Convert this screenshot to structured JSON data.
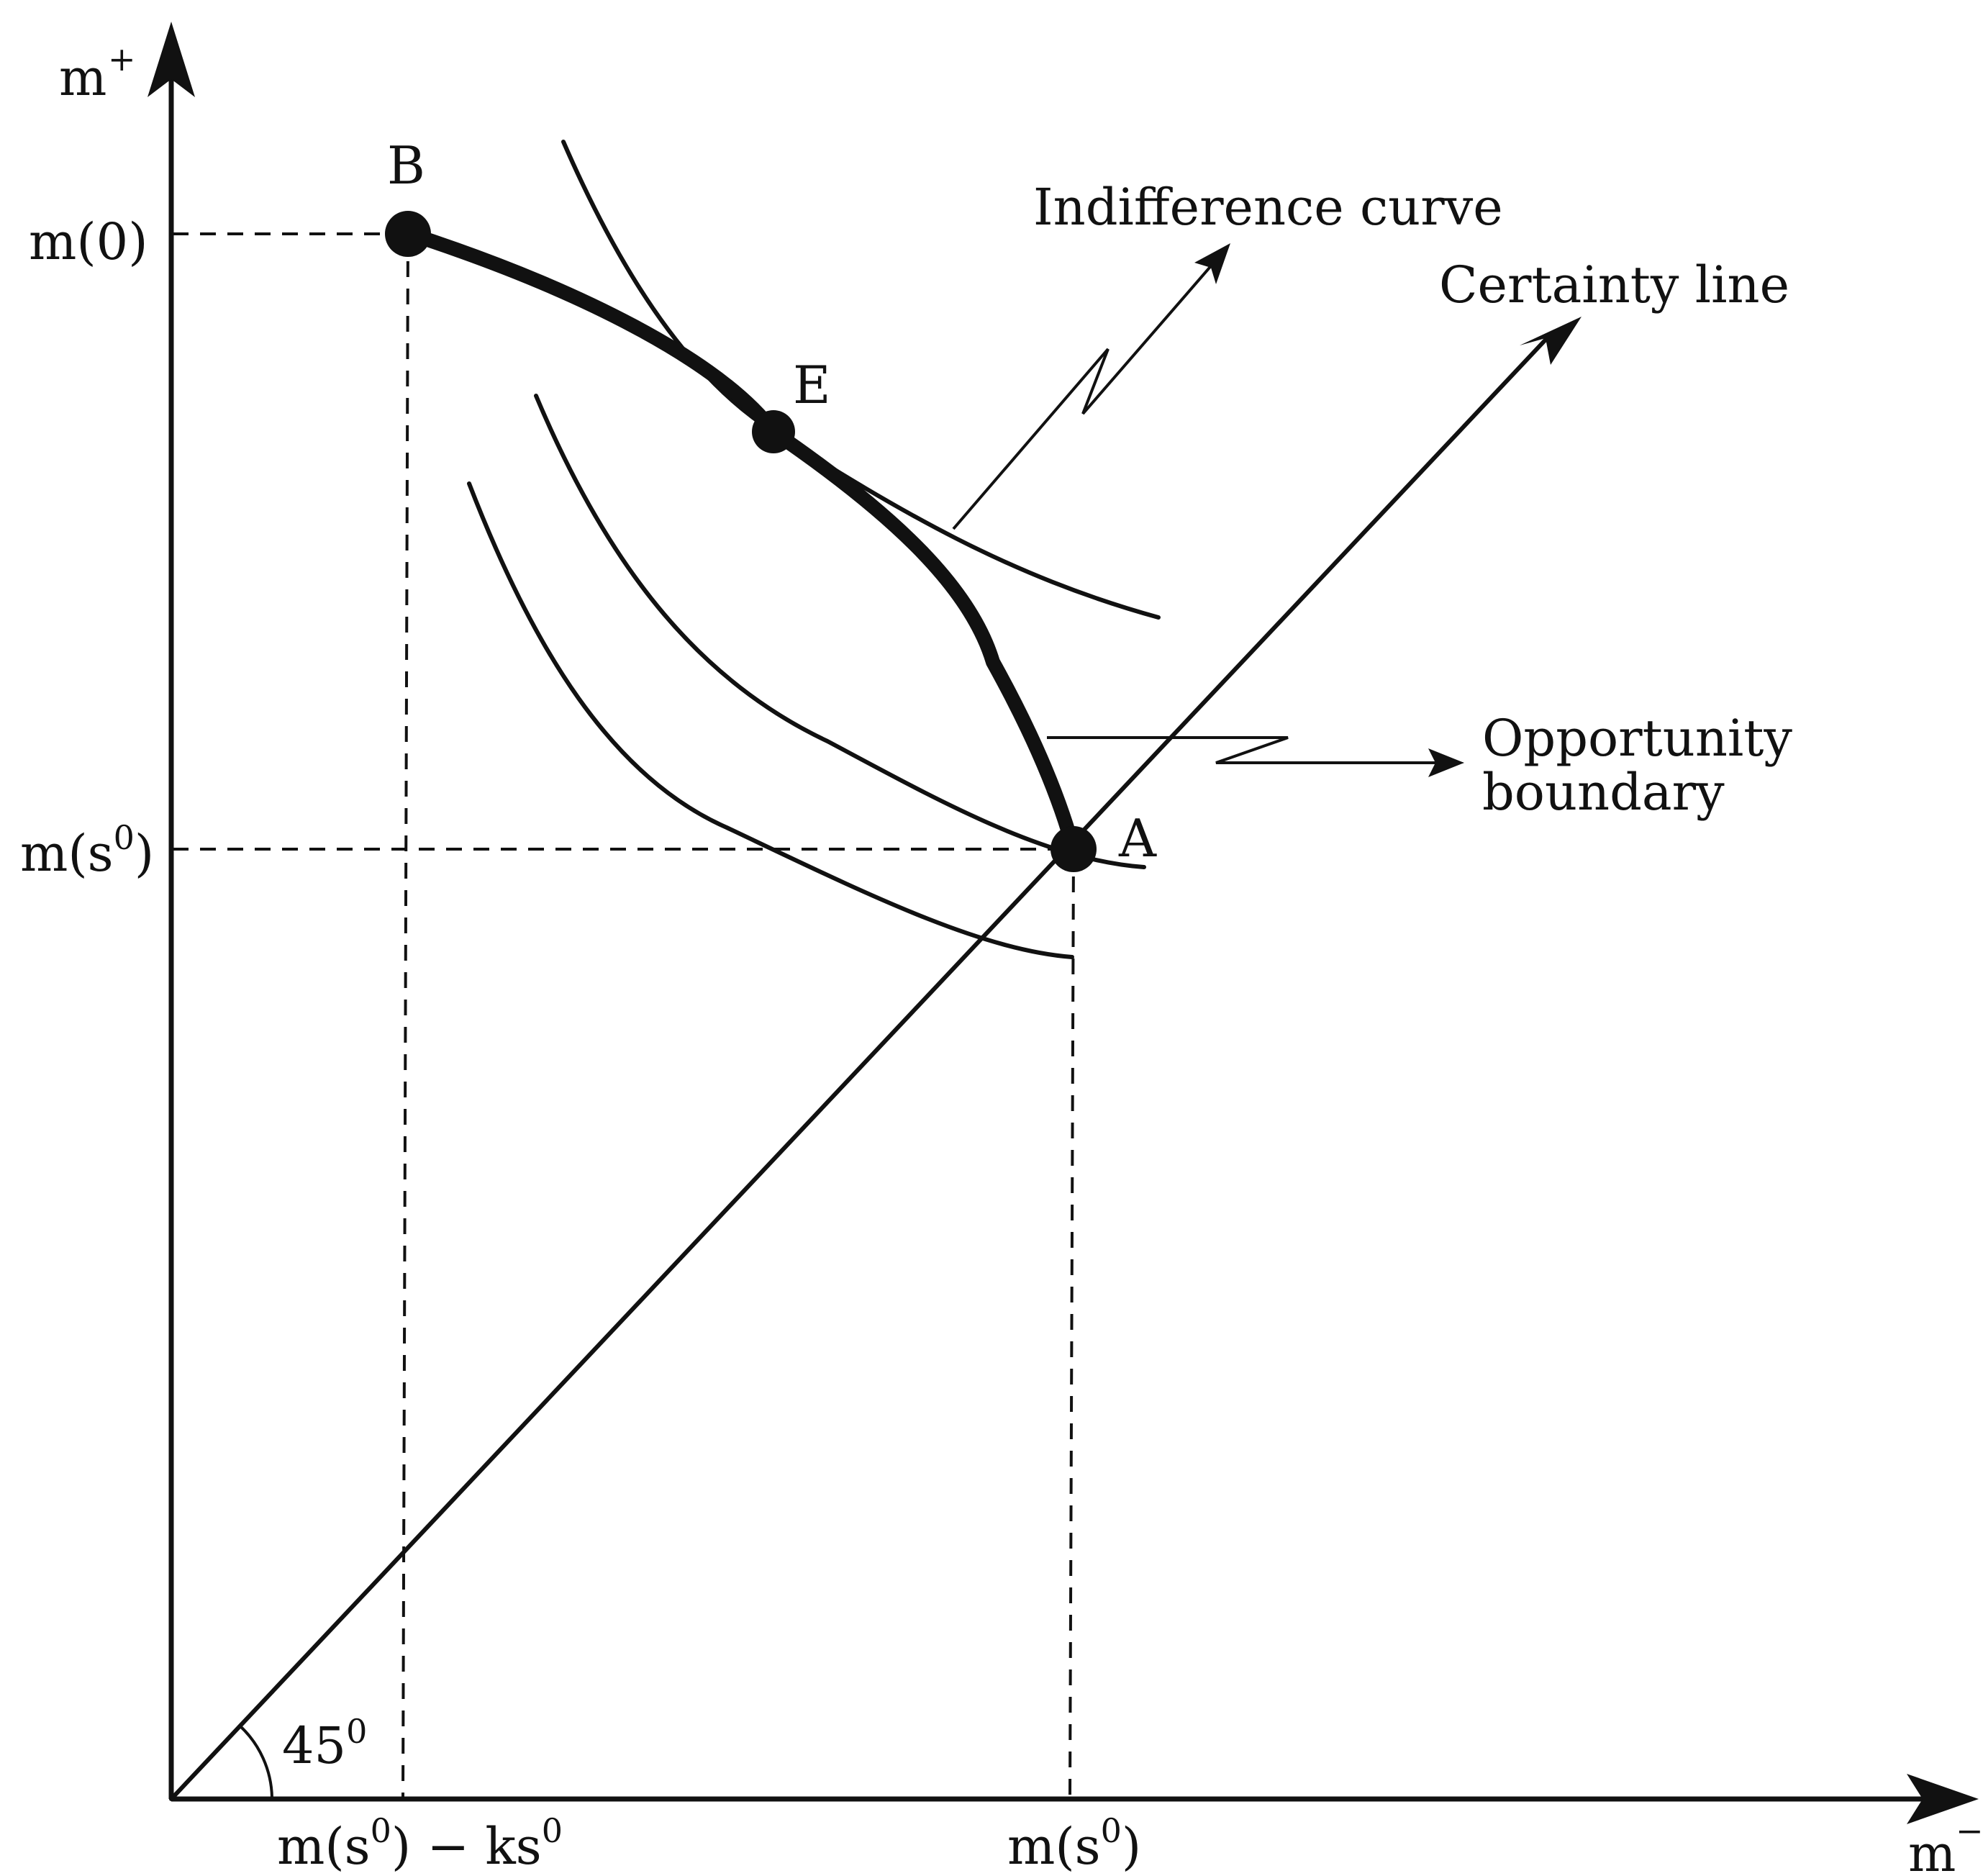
{
  "axes": {
    "y_label": "m",
    "y_label_sup": "+",
    "x_label": "m",
    "x_label_sup": "−"
  },
  "y_ticks": {
    "m0": "m(0)",
    "ms0_base": "m(s",
    "ms0_sup": "0",
    "ms0_end": ")"
  },
  "x_ticks": {
    "left_base": "m(s",
    "left_sup": "0",
    "left_mid": ") − ks",
    "left_sup2": "0",
    "right_base": "m(s",
    "right_sup": "0",
    "right_end": ")"
  },
  "points": {
    "A": "A",
    "B": "B",
    "E": "E"
  },
  "angle": {
    "value": "45",
    "sup": "0"
  },
  "annotations": {
    "indifference": "Indifference curve",
    "certainty": "Certainty line",
    "opportunity_line1": "Opportunity",
    "opportunity_line2": "boundary"
  }
}
